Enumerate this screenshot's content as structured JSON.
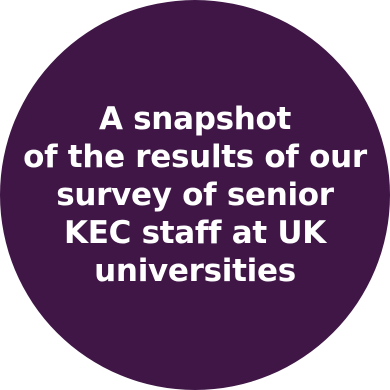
{
  "badge": {
    "background_color": "#3f1646",
    "text_color": "#ffffff",
    "lines": [
      "A snapshot",
      "of the results of our",
      "survey of senior",
      "KEC staff at UK",
      "universities"
    ]
  }
}
